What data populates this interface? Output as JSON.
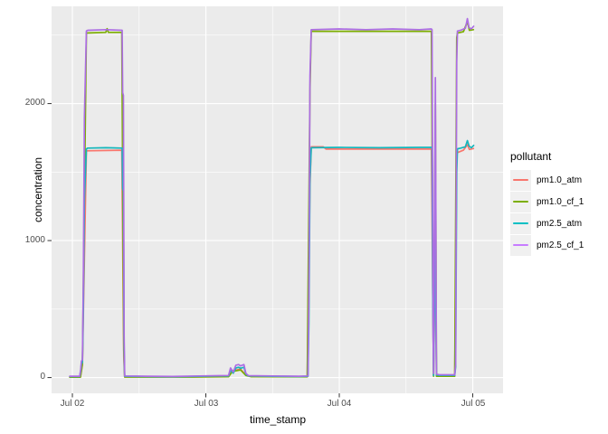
{
  "figure": {
    "background": "#FFFFFF",
    "panel_background": "#EBEBEB",
    "grid_major_color": "#FFFFFF",
    "grid_minor_color": "#FFFFFF",
    "tick_mark_color": "#333333",
    "tick_label_color": "#4D4D4D"
  },
  "axes": {
    "x_title": "time_stamp",
    "y_title": "concentration",
    "x_tick_labels": [
      "Jul 02",
      "Jul 03",
      "Jul 04",
      "Jul 05"
    ],
    "y_tick_labels": [
      "0",
      "1000",
      "2000"
    ]
  },
  "legend": {
    "title": "pollutant",
    "entries": [
      {
        "label": "pm1.0_atm",
        "color": "#F8766D"
      },
      {
        "label": "pm1.0_cf_1",
        "color": "#7CAE00"
      },
      {
        "label": "pm2.5_atm",
        "color": "#00BFC4"
      },
      {
        "label": "pm2.5_cf_1",
        "color": "#C77CFF"
      }
    ]
  },
  "chart_data": {
    "type": "line",
    "title": "",
    "xlabel": "time_stamp",
    "ylabel": "concentration",
    "x_units": "days_after_Jul_02",
    "xlim": [
      -0.156,
      3.227
    ],
    "ylim": [
      -115,
      2710
    ],
    "grid": true,
    "legend_position": "right",
    "x_major_ticks": [
      0,
      1,
      2,
      3
    ],
    "x_major_tick_labels": [
      "Jul 02",
      "Jul 03",
      "Jul 04",
      "Jul 05"
    ],
    "x_minor_ticks": [
      0.5,
      1.5,
      2.5
    ],
    "y_major_ticks": [
      0,
      1000,
      2000
    ],
    "y_minor_ticks": [
      500,
      1500,
      2500
    ],
    "series": [
      {
        "name": "pm1.0_atm",
        "color": "#F8766D",
        "plot_color": "#F8766D",
        "points": [
          [
            -0.02,
            4
          ],
          [
            0.06,
            4
          ],
          [
            0.075,
            90
          ],
          [
            0.105,
            1655
          ],
          [
            0.37,
            1660
          ],
          [
            0.385,
            150
          ],
          [
            0.392,
            5
          ],
          [
            0.9,
            5
          ],
          [
            1.17,
            8
          ],
          [
            1.2,
            50
          ],
          [
            1.26,
            62
          ],
          [
            1.3,
            18
          ],
          [
            1.34,
            8
          ],
          [
            1.76,
            6
          ],
          [
            1.78,
            1400
          ],
          [
            1.79,
            1684
          ],
          [
            1.88,
            1684
          ],
          [
            1.9,
            1668
          ],
          [
            2.69,
            1668
          ],
          [
            2.7,
            600
          ],
          [
            2.706,
            12
          ],
          [
            2.72,
            980
          ],
          [
            2.728,
            12
          ],
          [
            2.865,
            12
          ],
          [
            2.88,
            1640
          ],
          [
            2.93,
            1660
          ],
          [
            2.96,
            1700
          ],
          [
            2.975,
            1665
          ],
          [
            3.005,
            1672
          ]
        ]
      },
      {
        "name": "pm1.0_cf_1",
        "color": "#7CAE00",
        "plot_color": "#7CAE00",
        "points": [
          [
            -0.02,
            3
          ],
          [
            0.06,
            3
          ],
          [
            0.075,
            100
          ],
          [
            0.105,
            2515
          ],
          [
            0.25,
            2520
          ],
          [
            0.26,
            2547
          ],
          [
            0.27,
            2520
          ],
          [
            0.37,
            2520
          ],
          [
            0.385,
            200
          ],
          [
            0.392,
            4
          ],
          [
            0.9,
            4
          ],
          [
            1.17,
            6
          ],
          [
            1.2,
            45
          ],
          [
            1.26,
            55
          ],
          [
            1.3,
            15
          ],
          [
            1.34,
            6
          ],
          [
            1.76,
            5
          ],
          [
            1.78,
            2100
          ],
          [
            1.79,
            2528
          ],
          [
            2.69,
            2528
          ],
          [
            2.7,
            900
          ],
          [
            2.706,
            10
          ],
          [
            2.72,
            2000
          ],
          [
            2.728,
            10
          ],
          [
            2.865,
            10
          ],
          [
            2.88,
            2480
          ],
          [
            2.885,
            2515
          ],
          [
            2.93,
            2525
          ],
          [
            2.96,
            2598
          ],
          [
            2.975,
            2535
          ],
          [
            3.005,
            2540
          ]
        ]
      },
      {
        "name": "pm2.5_atm",
        "color": "#00BFC4",
        "plot_color": "#14B6BB",
        "points": [
          [
            -0.02,
            8
          ],
          [
            0.055,
            8
          ],
          [
            0.062,
            50
          ],
          [
            0.068,
            100
          ],
          [
            0.075,
            110
          ],
          [
            0.082,
            500
          ],
          [
            0.09,
            1300
          ],
          [
            0.105,
            1670
          ],
          [
            0.115,
            1675
          ],
          [
            0.25,
            1678
          ],
          [
            0.373,
            1675
          ],
          [
            0.377,
            1380
          ],
          [
            0.382,
            1360
          ],
          [
            0.388,
            200
          ],
          [
            0.392,
            10
          ],
          [
            0.55,
            8
          ],
          [
            0.75,
            6
          ],
          [
            0.95,
            10
          ],
          [
            1.1,
            12
          ],
          [
            1.17,
            12
          ],
          [
            1.185,
            55
          ],
          [
            1.205,
            32
          ],
          [
            1.225,
            70
          ],
          [
            1.245,
            75
          ],
          [
            1.26,
            68
          ],
          [
            1.285,
            75
          ],
          [
            1.3,
            25
          ],
          [
            1.32,
            12
          ],
          [
            1.5,
            10
          ],
          [
            1.7,
            8
          ],
          [
            1.765,
            10
          ],
          [
            1.772,
            400
          ],
          [
            1.78,
            1450
          ],
          [
            1.79,
            1678
          ],
          [
            2.0,
            1680
          ],
          [
            2.3,
            1678
          ],
          [
            2.6,
            1680
          ],
          [
            2.69,
            1680
          ],
          [
            2.695,
            1676
          ],
          [
            2.7,
            620
          ],
          [
            2.706,
            15
          ],
          [
            2.72,
            1000
          ],
          [
            2.728,
            18
          ],
          [
            2.75,
            16
          ],
          [
            2.865,
            16
          ],
          [
            2.872,
            80
          ],
          [
            2.88,
            1500
          ],
          [
            2.885,
            1670
          ],
          [
            2.91,
            1675
          ],
          [
            2.945,
            1685
          ],
          [
            2.96,
            1730
          ],
          [
            2.972,
            1690
          ],
          [
            2.99,
            1678
          ],
          [
            3.007,
            1695
          ]
        ]
      },
      {
        "name": "pm2.5_cf_1",
        "color": "#C77CFF",
        "plot_color": "#AC6DE3",
        "points": [
          [
            -0.02,
            10
          ],
          [
            0.055,
            10
          ],
          [
            0.062,
            60
          ],
          [
            0.068,
            120
          ],
          [
            0.075,
            130
          ],
          [
            0.082,
            700
          ],
          [
            0.09,
            1900
          ],
          [
            0.105,
            2530
          ],
          [
            0.115,
            2535
          ],
          [
            0.25,
            2540
          ],
          [
            0.373,
            2535
          ],
          [
            0.377,
            2080
          ],
          [
            0.382,
            2060
          ],
          [
            0.388,
            300
          ],
          [
            0.392,
            12
          ],
          [
            0.55,
            10
          ],
          [
            0.75,
            8
          ],
          [
            0.95,
            12
          ],
          [
            1.1,
            14
          ],
          [
            1.17,
            15
          ],
          [
            1.185,
            70
          ],
          [
            1.205,
            40
          ],
          [
            1.225,
            90
          ],
          [
            1.245,
            95
          ],
          [
            1.26,
            85
          ],
          [
            1.285,
            95
          ],
          [
            1.3,
            30
          ],
          [
            1.32,
            14
          ],
          [
            1.5,
            12
          ],
          [
            1.7,
            10
          ],
          [
            1.765,
            12
          ],
          [
            1.772,
            600
          ],
          [
            1.78,
            2200
          ],
          [
            1.79,
            2540
          ],
          [
            2.0,
            2545
          ],
          [
            2.2,
            2540
          ],
          [
            2.4,
            2545
          ],
          [
            2.6,
            2540
          ],
          [
            2.69,
            2545
          ],
          [
            2.695,
            2540
          ],
          [
            2.7,
            1200
          ],
          [
            2.703,
            300
          ],
          [
            2.707,
            30
          ],
          [
            2.72,
            2190
          ],
          [
            2.728,
            25
          ],
          [
            2.75,
            20
          ],
          [
            2.865,
            20
          ],
          [
            2.872,
            100
          ],
          [
            2.88,
            2300
          ],
          [
            2.885,
            2530
          ],
          [
            2.91,
            2535
          ],
          [
            2.945,
            2550
          ],
          [
            2.96,
            2620
          ],
          [
            2.972,
            2555
          ],
          [
            2.99,
            2545
          ],
          [
            3.007,
            2565
          ]
        ]
      }
    ]
  }
}
